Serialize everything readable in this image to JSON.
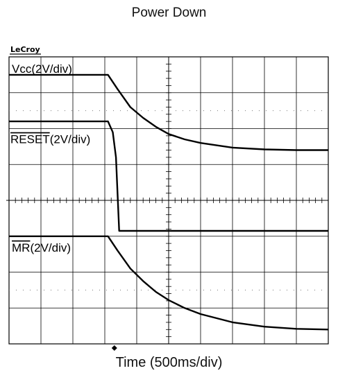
{
  "title": "Power Down",
  "brand": "LeCroy",
  "chart_data": {
    "type": "line",
    "title": "Power Down",
    "xlabel": "Time (500ms/div)",
    "x_divisions": 10,
    "y_divisions": 8,
    "x_unit": "div",
    "trigger_x": 3.3,
    "series": [
      {
        "name": "Vcc(2V/div)",
        "overline": "",
        "suffix": "Vcc(2V/div)",
        "x": [
          0,
          3.1,
          3.4,
          3.8,
          4.2,
          4.6,
          5.0,
          5.5,
          6.0,
          7.0,
          8.0,
          9.0,
          10.0
        ],
        "y": [
          7.5,
          7.5,
          7.1,
          6.6,
          6.3,
          6.05,
          5.85,
          5.7,
          5.6,
          5.47,
          5.42,
          5.4,
          5.4
        ]
      },
      {
        "name": "RESET(2V/div)",
        "overline": "RESET",
        "suffix": "(2V/div)",
        "x": [
          0,
          3.1,
          3.25,
          3.35,
          3.45,
          10.0
        ],
        "y": [
          6.2,
          6.2,
          5.9,
          5.2,
          3.15,
          3.15
        ]
      },
      {
        "name": "MR(2V/div)",
        "overline": "MR",
        "suffix": "(2V/div)",
        "x": [
          0,
          3.1,
          3.4,
          3.8,
          4.2,
          4.6,
          5.0,
          5.5,
          6.0,
          7.0,
          8.0,
          9.0,
          10.0
        ],
        "y": [
          3.0,
          3.0,
          2.6,
          2.1,
          1.75,
          1.45,
          1.22,
          1.0,
          0.83,
          0.6,
          0.48,
          0.42,
          0.4
        ]
      }
    ]
  }
}
